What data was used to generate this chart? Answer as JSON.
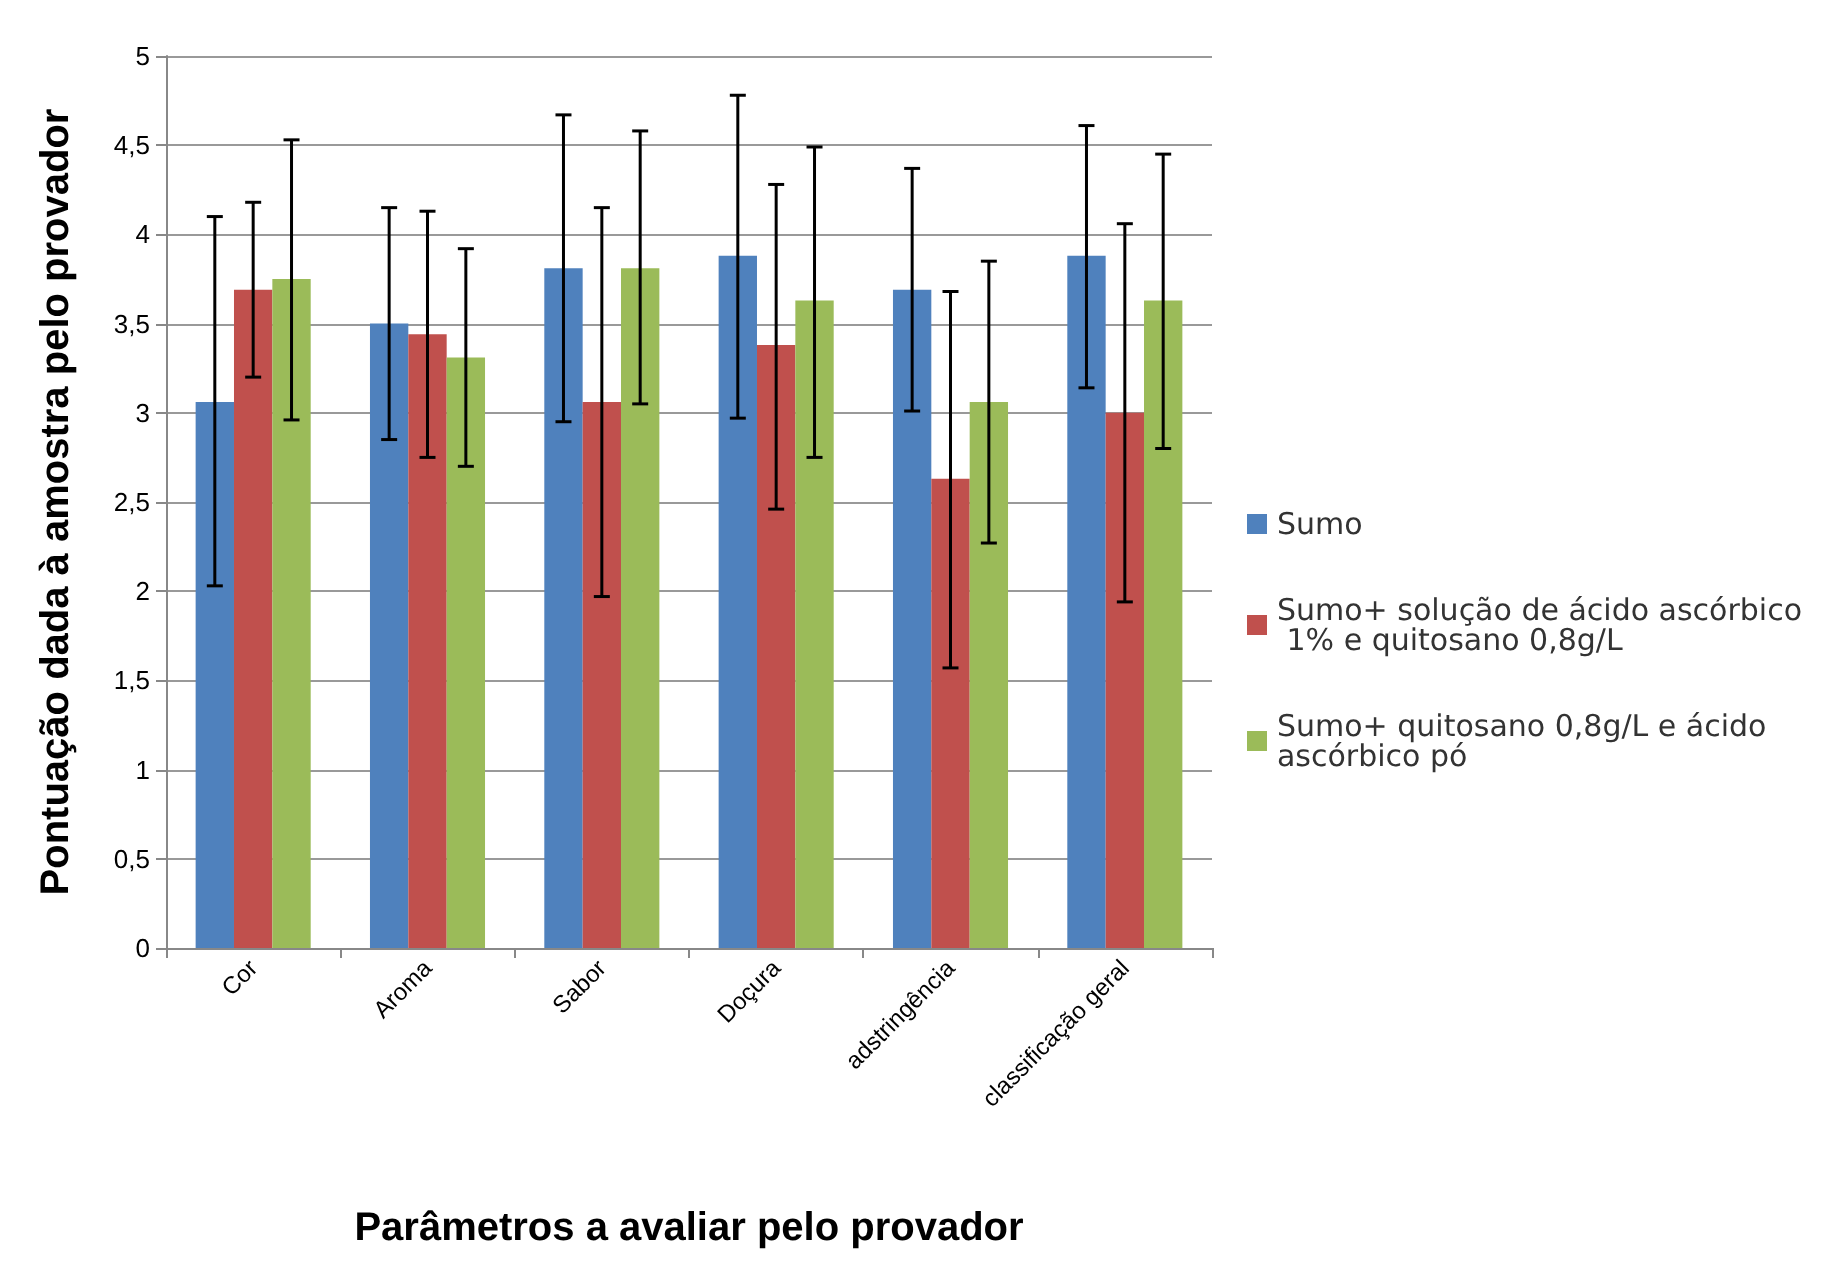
{
  "chart_data": {
    "type": "bar",
    "xlabel": "Parâmetros a avaliar pelo provador",
    "ylabel": "Pontuação dada à amostra pelo provador",
    "categories": [
      "Cor",
      "Aroma",
      "Sabor",
      "Doçura",
      "adstringência",
      "classificação geral"
    ],
    "series": [
      {
        "name": "Sumo",
        "color": "#4f81bd",
        "values": [
          3.06,
          3.5,
          3.81,
          3.88,
          3.69,
          3.88
        ],
        "errors": [
          [
            2.03,
            4.1
          ],
          [
            2.85,
            4.15
          ],
          [
            2.95,
            4.67
          ],
          [
            2.97,
            4.78
          ],
          [
            3.01,
            4.37
          ],
          [
            3.14,
            4.61
          ]
        ]
      },
      {
        "name": "Sumo+ solução de ácido ascórbico 1% e quitosano 0,8g/L",
        "color": "#c0504d",
        "values": [
          3.69,
          3.44,
          3.06,
          3.38,
          2.63,
          3.0
        ],
        "errors": [
          [
            3.2,
            4.18
          ],
          [
            2.75,
            4.13
          ],
          [
            1.97,
            4.15
          ],
          [
            2.46,
            4.28
          ],
          [
            1.57,
            3.68
          ],
          [
            1.94,
            4.06
          ]
        ]
      },
      {
        "name": "Sumo+ quitosano 0,8g/L e ácido ascórbico pó",
        "color": "#9bbb59",
        "values": [
          3.75,
          3.31,
          3.81,
          3.63,
          3.06,
          3.63
        ],
        "errors": [
          [
            2.96,
            4.53
          ],
          [
            2.7,
            3.92
          ],
          [
            3.05,
            4.58
          ],
          [
            2.75,
            4.49
          ],
          [
            2.27,
            3.85
          ],
          [
            2.8,
            4.45
          ]
        ]
      }
    ],
    "ylim": [
      0,
      5
    ],
    "yticks": [
      0,
      {
        "value": 0.5,
        "label": "0,5"
      },
      1,
      {
        "value": 1.5,
        "label": "1,5"
      },
      2,
      {
        "value": 2.5,
        "label": "2,5"
      },
      3,
      {
        "value": 3.5,
        "label": "3,5"
      },
      4,
      {
        "value": 4.5,
        "label": "4,5"
      },
      5
    ],
    "grid": "y",
    "legend": "right"
  }
}
